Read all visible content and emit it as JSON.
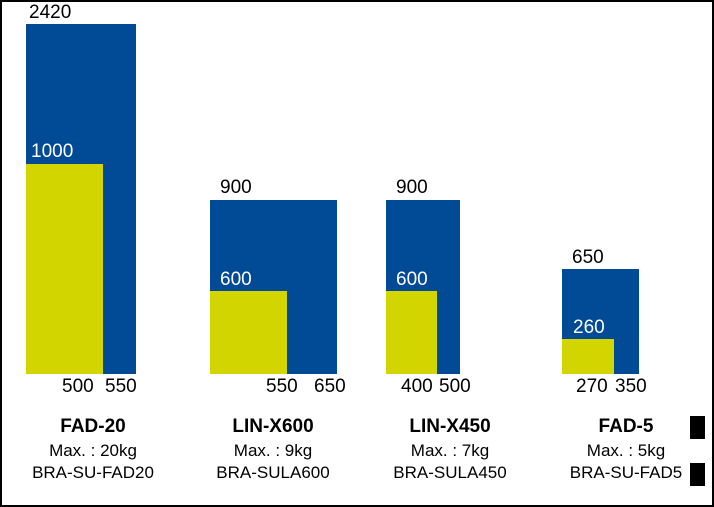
{
  "colors": {
    "blue_bar": "#004a96",
    "yellow_bar": "#d3d500",
    "label_on_bar": "#ffffff",
    "label_text": "#000000",
    "background": "#ffffff",
    "border": "#000000"
  },
  "chart_data": {
    "type": "bar",
    "title": "",
    "grid": false,
    "legend_position": "none",
    "description": "Nested proportional rectangles comparing product dimensions; blue outer rectangle = larger model dimensions (height label on top, width label at bottom), yellow inner rectangle = smaller dimensions (white height label, width label at bottom).",
    "categories": [
      "FAD-20",
      "LIN-X600",
      "LIN-X450",
      "FAD-5"
    ],
    "series": [
      {
        "name": "blue-outer",
        "color": "#004a96",
        "heights": [
          2420,
          900,
          900,
          650
        ],
        "widths": [
          550,
          650,
          500,
          350
        ]
      },
      {
        "name": "yellow-inner",
        "color": "#d3d500",
        "heights": [
          1000,
          600,
          600,
          260
        ],
        "widths": [
          500,
          550,
          400,
          270
        ]
      }
    ],
    "groups": [
      {
        "name": "FAD-20",
        "max": "Max. : 20kg",
        "code": "BRA-SU-FAD20",
        "blue_height": 2420,
        "blue_width": 550,
        "yellow_height": 1000,
        "yellow_width": 500
      },
      {
        "name": "LIN-X600",
        "max": "Max. : 9kg",
        "code": "BRA-SULA600",
        "blue_height": 900,
        "blue_width": 650,
        "yellow_height": 600,
        "yellow_width": 550
      },
      {
        "name": "LIN-X450",
        "max": "Max. : 7kg",
        "code": "BRA-SULA450",
        "blue_height": 900,
        "blue_width": 500,
        "yellow_height": 600,
        "yellow_width": 400
      },
      {
        "name": "FAD-5",
        "max": "Max. : 5kg",
        "code": "BRA-SU-FAD5",
        "blue_height": 650,
        "blue_width": 350,
        "yellow_height": 260,
        "yellow_width": 270
      }
    ]
  }
}
